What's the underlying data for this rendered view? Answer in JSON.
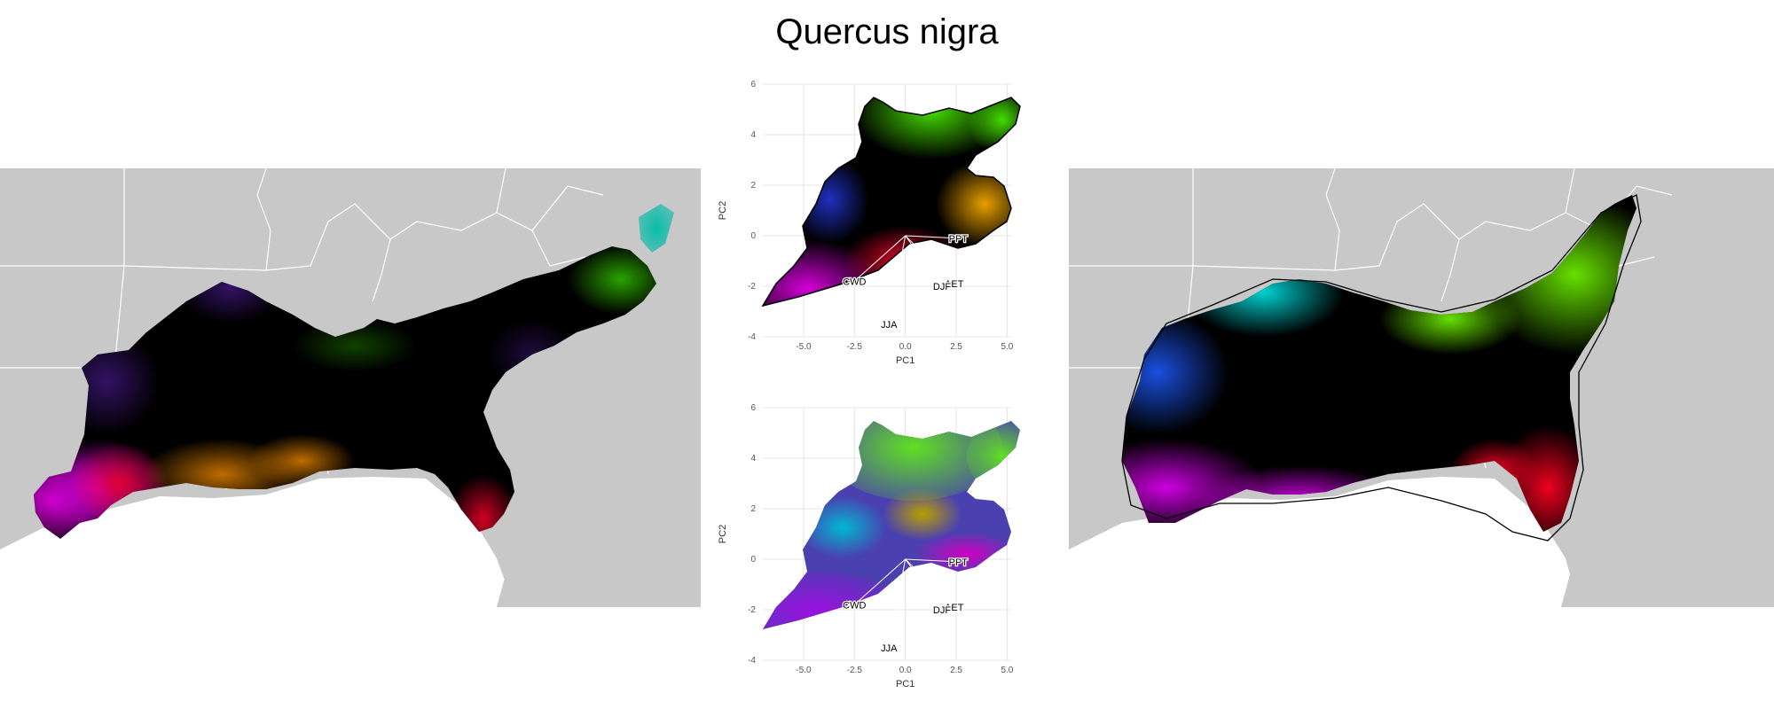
{
  "title": "Quercus nigra",
  "maps": {
    "left": {
      "type": "climate-colored range map",
      "base_color": "#c8c8c8",
      "border_color": "#ffffff"
    },
    "right": {
      "type": "smoothed climate-colored range map with hull outline",
      "base_color": "#c8c8c8",
      "border_color": "#ffffff"
    }
  },
  "colors": {
    "magenta": "#d400d8",
    "red": "#e8002a",
    "orange": "#e08000",
    "green": "#33cc00",
    "lime": "#7be800",
    "cyan": "#00c8c8",
    "blue": "#1a4cd8",
    "violet": "#5a00b0",
    "black": "#000000"
  },
  "chart_data": [
    {
      "type": "scatter",
      "panel": "top",
      "xlabel": "PC1",
      "ylabel": "PC2",
      "xlim": [
        -7,
        5.2
      ],
      "ylim": [
        -4,
        6
      ],
      "x_ticks": [
        "-5.0",
        "-2.5",
        "0.0",
        "2.5",
        "5.0"
      ],
      "y_ticks": [
        "-4",
        "-2",
        "0",
        "2",
        "4",
        "6"
      ],
      "grid": true,
      "vectors": [
        {
          "label": "PPT",
          "x": 2.6,
          "y": -0.1
        },
        {
          "label": "AET",
          "x": 2.4,
          "y": -1.9
        },
        {
          "label": "DJF",
          "x": 1.8,
          "y": -2.0
        },
        {
          "label": "CWD",
          "x": -2.5,
          "y": -1.8
        },
        {
          "label": "JJA",
          "x": -0.8,
          "y": -3.5
        }
      ]
    },
    {
      "type": "scatter",
      "panel": "bottom",
      "xlabel": "PC1",
      "ylabel": "PC2",
      "xlim": [
        -7,
        5.2
      ],
      "ylim": [
        -4,
        6
      ],
      "x_ticks": [
        "-5.0",
        "-2.5",
        "0.0",
        "2.5",
        "5.0"
      ],
      "y_ticks": [
        "-4",
        "-2",
        "0",
        "2",
        "4",
        "6"
      ],
      "grid": true,
      "vectors": [
        {
          "label": "PPT",
          "x": 2.6,
          "y": -0.1
        },
        {
          "label": "AET",
          "x": 2.4,
          "y": -1.9
        },
        {
          "label": "DJF",
          "x": 1.8,
          "y": -2.0
        },
        {
          "label": "CWD",
          "x": -2.5,
          "y": -1.8
        },
        {
          "label": "JJA",
          "x": -0.8,
          "y": -3.5
        }
      ]
    }
  ]
}
